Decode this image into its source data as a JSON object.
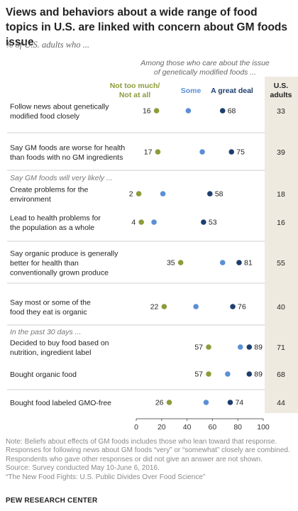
{
  "title": "Views and behaviors about a wide range of food topics in U.S. are linked with concern about GM foods issue",
  "subtitle": "% of U.S. adults who ...",
  "group_header_line1": "Among those who care about the issue",
  "group_header_line2": "of genetically modified foods ...",
  "total_header_line1": "U.S.",
  "total_header_line2": "adults",
  "colors": {
    "not_too_much": "#8c9c3a",
    "some": "#5b8fd6",
    "a_great_deal": "#1d3f6e",
    "total_bg": "#eeeae0",
    "section_label": "#777777"
  },
  "chart_data": {
    "type": "dot",
    "xlim": [
      0,
      100
    ],
    "xticks": [
      "0",
      "20",
      "40",
      "60",
      "80",
      "100"
    ],
    "series": [
      {
        "name_line1": "Not too much/",
        "name_line2": "Not at all"
      },
      {
        "name_line1": "Some",
        "name_line2": ""
      },
      {
        "name_line1": "A great deal",
        "name_line2": ""
      }
    ],
    "section_labels": [
      "Say GM foods will very likely ...",
      "In the past 30 days ..."
    ],
    "rows": [
      {
        "label_lines": [
          "Follow news about genetically",
          "modified food closely"
        ],
        "values": [
          16,
          41,
          68
        ],
        "labels": [
          "16",
          "",
          "68"
        ],
        "total": "33"
      },
      {
        "label_lines": [
          "Say GM foods are worse for health",
          "than foods with no GM ingredients"
        ],
        "values": [
          17,
          52,
          75
        ],
        "labels": [
          "17",
          "",
          "75"
        ],
        "total": "39"
      },
      {
        "label_lines": [
          "Create problems for the",
          "environment"
        ],
        "values": [
          2,
          21,
          58
        ],
        "labels": [
          "2",
          "",
          "58"
        ],
        "total": "18"
      },
      {
        "label_lines": [
          "Lead to health problems for",
          "the population as a whole"
        ],
        "values": [
          4,
          14,
          53
        ],
        "labels": [
          "4",
          "",
          "53"
        ],
        "total": "16"
      },
      {
        "label_lines": [
          "Say organic produce is generally",
          "better for health than",
          "conventionally grown produce"
        ],
        "values": [
          35,
          68,
          81
        ],
        "labels": [
          "35",
          "",
          "81"
        ],
        "total": "55"
      },
      {
        "label_lines": [
          "Say most or some of the",
          "food they eat is organic"
        ],
        "values": [
          22,
          47,
          76
        ],
        "labels": [
          "22",
          "",
          "76"
        ],
        "total": "40"
      },
      {
        "label_lines": [
          "Decided to buy food based on",
          "nutrition, ingredient label"
        ],
        "values": [
          57,
          82,
          89
        ],
        "labels": [
          "57",
          "",
          "89"
        ],
        "total": "71"
      },
      {
        "label_lines": [
          "Bought organic food"
        ],
        "values": [
          57,
          72,
          89
        ],
        "labels": [
          "57",
          "",
          "89"
        ],
        "total": "68"
      },
      {
        "label_lines": [
          "Bought food labeled GMO-free"
        ],
        "values": [
          26,
          55,
          74
        ],
        "labels": [
          "26",
          "",
          "74"
        ],
        "total": "44"
      }
    ]
  },
  "notes": [
    "Note: Beliefs about effects of GM foods includes those who lean toward that response.",
    "Responses for following news about GM foods “very” or “somewhat” closely are combined.",
    "Respondents who gave other responses or did not give an answer are not shown.",
    "Source: Survey conducted May 10-June 6, 2016.",
    "“The New Food Fights: U.S. Public Divides Over Food Science”"
  ],
  "footer": "PEW RESEARCH CENTER"
}
